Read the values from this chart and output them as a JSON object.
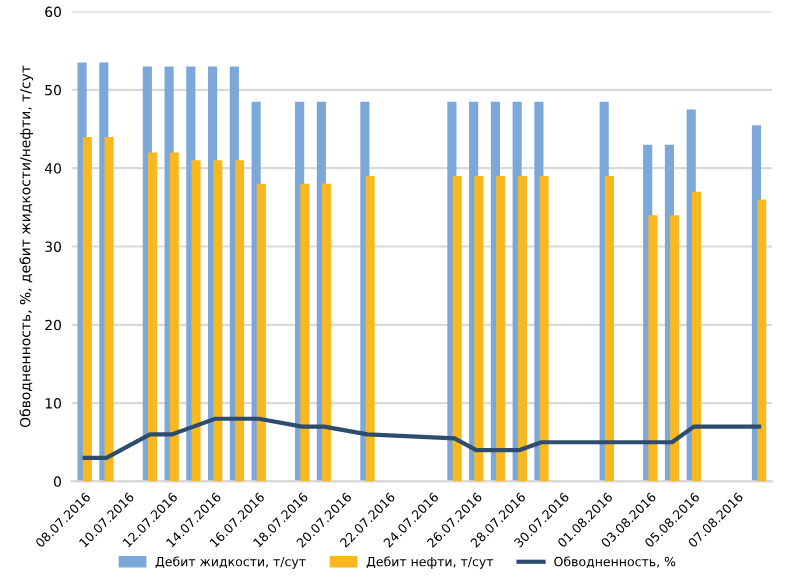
{
  "chart_data": {
    "type": "bar",
    "ylabel": "Обводненность, %, дебит жидкости/нефти, т/сут",
    "categories": [
      "08.07.2016",
      null,
      "10.07.2016",
      null,
      "12.07.2016",
      null,
      "14.07.2016",
      null,
      "16.07.2016",
      null,
      "18.07.2016",
      null,
      "20.07.2016",
      null,
      "22.07.2016",
      null,
      "24.07.2016",
      null,
      "26.07.2016",
      null,
      "28.07.2016",
      null,
      "30.07.2016",
      null,
      "01.08.2016",
      null,
      "03.08.2016",
      null,
      "05.08.2016",
      null,
      "07.08.2016",
      null
    ],
    "series": [
      {
        "name": "Дебит жидкости, т/сут",
        "color": "#7ba7d9",
        "values": [
          53.5,
          53.5,
          null,
          53,
          53,
          53,
          53,
          53,
          48.5,
          null,
          48.5,
          48.5,
          null,
          48.5,
          null,
          null,
          null,
          48.5,
          48.5,
          48.5,
          48.5,
          48.5,
          null,
          null,
          48.5,
          null,
          43,
          43,
          47.5,
          null,
          null,
          45.5
        ]
      },
      {
        "name": "Дебит нефти, т/сут",
        "color": "#f7b822",
        "values": [
          44,
          44,
          null,
          42,
          42,
          41,
          41,
          41,
          38,
          null,
          38,
          38,
          null,
          39,
          null,
          null,
          null,
          39,
          39,
          39,
          39,
          39,
          null,
          null,
          39,
          null,
          34,
          34,
          37,
          null,
          null,
          36
        ]
      },
      {
        "name": "Обводненность, %",
        "type": "line",
        "color": "#2e4d6e",
        "values": [
          3,
          3,
          null,
          6,
          6,
          7,
          8,
          8,
          8,
          null,
          7,
          7,
          null,
          6,
          null,
          null,
          null,
          5.5,
          4,
          4,
          4,
          5,
          null,
          null,
          5,
          null,
          5,
          5,
          7,
          null,
          null,
          7
        ]
      }
    ],
    "ylim": [
      0,
      60
    ],
    "yticks": [
      0,
      10,
      20,
      30,
      40,
      50,
      60
    ],
    "grid": "y",
    "legend": "bottom"
  }
}
